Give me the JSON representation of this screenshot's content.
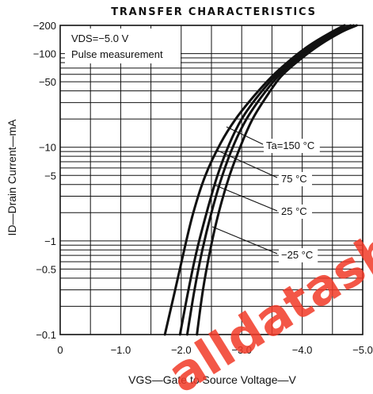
{
  "chart_data": {
    "type": "line",
    "title": "TRANSFER CHARACTERISTICS",
    "xlabel": "VGS—Gate to Source Voltage—V",
    "ylabel": "ID—Drain Current—mA",
    "xlim": [
      0,
      -5.0
    ],
    "ylim": [
      0.1,
      200
    ],
    "yscale": "log",
    "grid": true,
    "x_ticks": [
      "0",
      "−1.0",
      "−2.0",
      "−3.0",
      "−4.0",
      "−5.0"
    ],
    "x_tick_values": [
      0,
      -1,
      -2,
      -3,
      -4,
      -5
    ],
    "y_ticks": [
      "−200",
      "−100",
      "−50",
      "−10",
      "−5",
      "−1",
      "−0.5",
      "−0.1"
    ],
    "y_tick_values": [
      200,
      100,
      50,
      10,
      5,
      1,
      0.5,
      0.1
    ],
    "conditions": [
      "VDS=−5.0 V",
      "Pulse measurement"
    ],
    "series": [
      {
        "name": "Ta=150 °C",
        "x": [
          -1.73,
          -1.9,
          -2.05,
          -2.2,
          -2.4,
          -2.65,
          -2.9,
          -3.2,
          -3.5,
          -3.8,
          -4.1,
          -4.45,
          -4.7
        ],
        "y": [
          0.1,
          0.3,
          0.8,
          2.0,
          5.0,
          11.0,
          20.0,
          35.0,
          57.0,
          85.0,
          120.0,
          165.0,
          200.0
        ]
      },
      {
        "name": "75 °C",
        "x": [
          -1.98,
          -2.12,
          -2.26,
          -2.42,
          -2.6,
          -2.8,
          -3.0,
          -3.25,
          -3.55,
          -3.85,
          -4.2,
          -4.55,
          -4.8
        ],
        "y": [
          0.1,
          0.3,
          0.8,
          2.0,
          5.0,
          11.0,
          20.0,
          34.0,
          57.0,
          85.0,
          125.0,
          170.0,
          200.0
        ]
      },
      {
        "name": "25 °C",
        "x": [
          -2.1,
          -2.22,
          -2.35,
          -2.5,
          -2.68,
          -2.88,
          -3.08,
          -3.32,
          -3.6,
          -3.9,
          -4.25,
          -4.6,
          -4.85
        ],
        "y": [
          0.1,
          0.3,
          0.8,
          2.0,
          5.0,
          11.0,
          20.0,
          34.0,
          57.0,
          85.0,
          125.0,
          170.0,
          200.0
        ]
      },
      {
        "name": "−25 °C",
        "x": [
          -2.26,
          -2.36,
          -2.48,
          -2.62,
          -2.8,
          -3.0,
          -3.18,
          -3.4,
          -3.65,
          -3.95,
          -4.3,
          -4.65,
          -4.9
        ],
        "y": [
          0.1,
          0.3,
          0.8,
          2.0,
          5.0,
          11.0,
          20.0,
          34.0,
          57.0,
          85.0,
          125.0,
          170.0,
          200.0
        ]
      }
    ],
    "series_labels": [
      "Ta=150 °C",
      "75 °C",
      "25 °C",
      "−25 °C"
    ]
  },
  "watermark": {
    "text": "alldatasheet recommend",
    "color": "#f23b2a"
  }
}
